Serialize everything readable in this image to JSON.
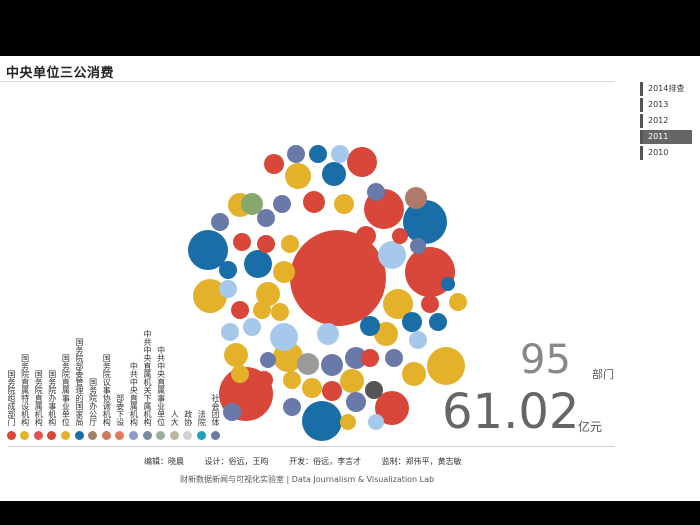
{
  "page": {
    "title": "中央单位三公消费"
  },
  "years": [
    {
      "label": "2014排查",
      "active": false
    },
    {
      "label": "2013",
      "active": false
    },
    {
      "label": "2012",
      "active": false
    },
    {
      "label": "2011",
      "active": true
    },
    {
      "label": "2010",
      "active": false
    }
  ],
  "stats": {
    "count": "95",
    "count_unit": "部门",
    "amount": "61.02",
    "amount_unit": "亿元"
  },
  "legend": [
    {
      "label": "国务院组成部门",
      "color": "#d9463a"
    },
    {
      "label": "国务院直属特设机构",
      "color": "#e3b22a"
    },
    {
      "label": "国务院直属机构",
      "color": "#e0534a"
    },
    {
      "label": "国务院办事机构",
      "color": "#d9463a"
    },
    {
      "label": "国务院直属事业单位",
      "color": "#e3b22a"
    },
    {
      "label": "国务院部委管理的国家局",
      "color": "#1a6ea8"
    },
    {
      "label": "国务院办公厅",
      "color": "#a0826d"
    },
    {
      "label": "国务院议事协调机构",
      "color": "#c97b5a"
    },
    {
      "label": "部委下设",
      "color": "#e07a5a"
    },
    {
      "label": "中共中央直属机构",
      "color": "#8a9ac8"
    },
    {
      "label": "中共中央直属机关下属机构",
      "color": "#7a8aa0"
    },
    {
      "label": "中共中央直属事业单位",
      "color": "#9ab0a0"
    },
    {
      "label": "人大",
      "color": "#b8b8a0"
    },
    {
      "label": "政协",
      "color": "#d0d0d0"
    },
    {
      "label": "法院",
      "color": "#1aa0c0"
    },
    {
      "label": "社会团体",
      "color": "#6a7aa0"
    }
  ],
  "credits": [
    "编辑：晓晨",
    "设计：俗远，王昀",
    "开发：俗远，李言才",
    "监制：郑伟平，黄志敏"
  ],
  "lab": "财新数据新闻与可视化实验室 | Data Journalism & Visualization Lab",
  "colors": {
    "red": "#d9463a",
    "yellow": "#e3b22a",
    "blue": "#1a6ea8",
    "lightblue": "#a6c8ea",
    "slate": "#6a7aa8",
    "gray": "#9a9a9a",
    "dark": "#555555",
    "green": "#86a86a",
    "brown": "#b07a6a"
  }
}
